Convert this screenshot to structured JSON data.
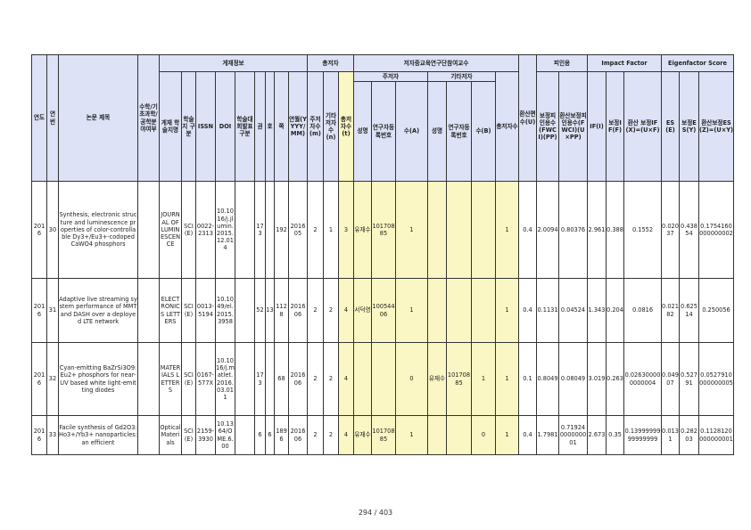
{
  "headers": {
    "year": "연도",
    "seq": "연번",
    "title": "논문 제목",
    "sci_flag": "수학/기초과학/공학분야여부",
    "pub_info": "게재정보",
    "journal": "게재 학술지명",
    "journal_type": "학술지 구분",
    "issn": "ISSN",
    "doi": "DOI",
    "category": "학술대회발표구분",
    "volume": "권",
    "issue": "호",
    "page": "쪽",
    "date": "연월(YYYY/MM)",
    "authors": "총저자",
    "main_author": "주저자수(m)",
    "other_author": "기타저자수(n)",
    "total_author": "총저자수(t)",
    "faculty": "저자중교육연구단참여교수",
    "main_group": "주저자",
    "other_group": "기타저자",
    "name": "성명",
    "researcher_no": "연구자등록번호",
    "count_a": "수(A)",
    "count_b": "수(B)",
    "total_cnt": "총저자수",
    "converted": "환산편수(U)",
    "citation": "피인용",
    "fwci": "보정피인용수(FWCI)(PP)",
    "conv_fwci": "환산보정피인용수(FWCI)(U×PP)",
    "impact": "Impact Factor",
    "if": "IF(I)",
    "if_corr": "보정IF(F)",
    "conv_if": "환산 보정IF(X)=(U×F)",
    "eigen": "Eigenfactor Score",
    "es": "ES(E)",
    "es_corr": "보정ES(Y)",
    "conv_es": "환산보정ES(Z)=(U×Y)"
  },
  "rows": [
    {
      "year": "2016",
      "seq": "30",
      "title": "Synthesis, electronic structure and luminescence properties of color-controllable Dy3+/Eu3+-codoped CaWO4 phosphors",
      "flag": "",
      "journal": "JOURNAL OF LUMINESCENCE",
      "jtype": "SCI(E)",
      "issn": "0022-2313",
      "doi": "10.1016/j.jlumin.2015.12.014",
      "category": "",
      "volume": "173",
      "issue": "",
      "page": "192",
      "date": "201605",
      "m": "2",
      "n": "1",
      "t": "3",
      "main_name": "유재수",
      "main_no": "10170885",
      "a": "1",
      "other_name": "",
      "other_no": "",
      "b": "",
      "total": "1",
      "u": "0.4",
      "fwci": "2.0094",
      "ufwci": "0.80376",
      "if": "2.961",
      "f": "0.388",
      "x": "0.1552",
      "e": "0.02037",
      "y": "0.43854",
      "z": "0.1754160000000002"
    },
    {
      "year": "2016",
      "seq": "31",
      "title": "Adaptive live streaming system performance of MMT and DASH over a deployed LTE network",
      "flag": "",
      "journal": "ELECTRONICS LETTERS",
      "jtype": "SCI(E)",
      "issn": "0013-5194",
      "doi": "10.1049/el.2015.3958",
      "category": "",
      "volume": "52",
      "issue": "13",
      "page": "1128",
      "date": "201606",
      "m": "2",
      "n": "2",
      "t": "4",
      "main_name": "서덕영",
      "main_no": "10054406",
      "a": "1",
      "other_name": "",
      "other_no": "",
      "b": "",
      "total": "1",
      "u": "0.4",
      "fwci": "0.1131",
      "ufwci": "0.04524",
      "if": "1.343",
      "f": "0.204",
      "x": "0.0816",
      "e": "0.02182",
      "y": "0.62514",
      "z": "0.250056"
    },
    {
      "year": "2016",
      "seq": "32",
      "title": "Cyan-emitting BaZrSi3O9:Eu2+ phosphors for near-UV based white light-emitting diodes",
      "flag": "",
      "journal": "MATERIALS LETTERS",
      "jtype": "SCI(E)",
      "issn": "0167-577X",
      "doi": "10.1016/j.matlet.2016.03.011",
      "category": "",
      "volume": "173",
      "issue": "",
      "page": "68",
      "date": "201606",
      "m": "2",
      "n": "2",
      "t": "4",
      "main_name": "",
      "main_no": "",
      "a": "0",
      "other_name": "유재수",
      "other_no": "10170885",
      "b": "1",
      "total": "1",
      "u": "0.1",
      "fwci": "0.8049",
      "ufwci": "0.08049",
      "if": "3.019",
      "f": "0.263",
      "x": "0.026300000000004",
      "e": "0.04907",
      "y": "0.52791",
      "z": "0.0527910000000005"
    },
    {
      "year": "2016",
      "seq": "33",
      "title": "Facile synthesis of Gd2O3:Ho3+/Yb3+ nanoparticles: an efficient",
      "flag": "",
      "journal": "Optical Materials",
      "jtype": "SCI(E)",
      "issn": "2159-3930",
      "doi": "10.1364/OME.6.00",
      "category": "",
      "volume": "6",
      "issue": "6",
      "page": "1896",
      "date": "201606",
      "m": "2",
      "n": "2",
      "t": "4",
      "main_name": "유재수",
      "main_no": "10170885",
      "a": "1",
      "other_name": "",
      "other_no": "",
      "b": "0",
      "total": "1",
      "u": "0.4",
      "fwci": "1.7981",
      "ufwci": "0.71924000000001",
      "if": "2.673",
      "f": "0.35",
      "x": "0.1399999999999999",
      "e": "0.0131",
      "y": "0.28203",
      "z": "0.1128120000000001"
    }
  ],
  "footer": {
    "page": "294 / 403"
  }
}
